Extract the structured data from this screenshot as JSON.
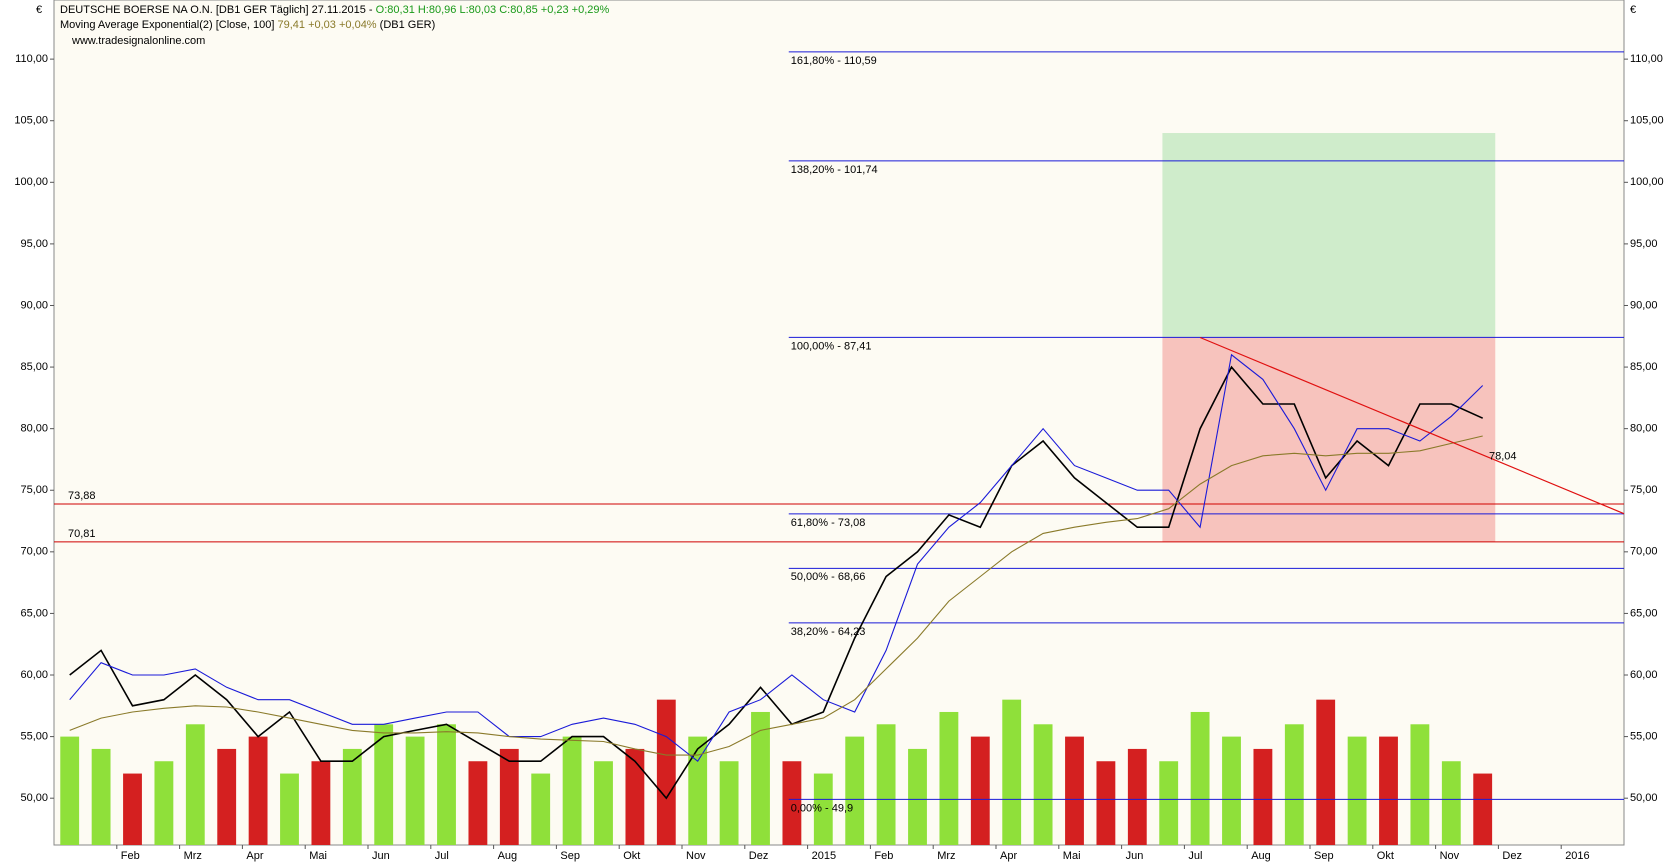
{
  "header": {
    "currency_left": "€",
    "currency_right": "€",
    "line1": "DEUTSCHE BOERSE NA O.N. [DB1 GER  Täglich] 27.11.2015 -",
    "ohlc": "O:80,31 H:80,96 L:80,03 C:80,85 +0,23 +0,29%",
    "line2": "Moving Average Exponential(2) [Close, 100]",
    "line2_values": "79,41 +0,03 +0,04%",
    "line2_suffix": "(DB1 GER)",
    "line3": "www.tradesignalonline.com"
  },
  "chart_data": {
    "type": "line",
    "categories": [
      null,
      null,
      "Feb",
      null,
      "Mrz",
      null,
      "Apr",
      null,
      "Mai",
      null,
      "Jun",
      null,
      "Jul",
      null,
      "Aug",
      null,
      "Sep",
      null,
      "Okt",
      null,
      "Nov",
      null,
      "Dez",
      null,
      "2015",
      null,
      "Feb",
      null,
      "Mrz",
      null,
      "Apr",
      null,
      "Mai",
      null,
      "Jun",
      null,
      "Jul",
      null,
      "Aug",
      null,
      "Sep",
      null,
      "Okt",
      null,
      "Nov",
      null,
      "Dez",
      null,
      "2016",
      null
    ],
    "ylim": [
      46.2,
      114.8
    ],
    "yticks": [
      {
        "value": 50,
        "label": "50,00"
      },
      {
        "value": 55,
        "label": "55,00"
      },
      {
        "value": 60,
        "label": "60,00"
      },
      {
        "value": 65,
        "label": "65,00"
      },
      {
        "value": 70,
        "label": "70,00"
      },
      {
        "value": 75,
        "label": "75,00"
      },
      {
        "value": 80,
        "label": "80,00"
      },
      {
        "value": 85,
        "label": "85,00"
      },
      {
        "value": 90,
        "label": "90,00"
      },
      {
        "value": 95,
        "label": "95,00"
      },
      {
        "value": 100,
        "label": "100,00"
      },
      {
        "value": 105,
        "label": "105,00"
      },
      {
        "value": 110,
        "label": "110,00"
      }
    ],
    "series": [
      {
        "name": "Close",
        "color": "#000000",
        "values": [
          60,
          62,
          57.5,
          58,
          60,
          58,
          55,
          57,
          53,
          53,
          55,
          55.5,
          56,
          54.5,
          53,
          53,
          55,
          55,
          53,
          50,
          54,
          56,
          59,
          56,
          57,
          63,
          68,
          70,
          73,
          72,
          77,
          79,
          76,
          74,
          72,
          72,
          80,
          85,
          82,
          82,
          76,
          79,
          77,
          82,
          82,
          80.85,
          null,
          null,
          null,
          null
        ]
      },
      {
        "name": "Band",
        "color": "#1a1ad8",
        "values": [
          58,
          61,
          60,
          60,
          60.5,
          59,
          58,
          58,
          57,
          56,
          56,
          56.5,
          57,
          57,
          55,
          55,
          56,
          56.5,
          56,
          55,
          53,
          57,
          58,
          60,
          58,
          57,
          62,
          69,
          72,
          74,
          77,
          80,
          77,
          76,
          75,
          75,
          72,
          86,
          84,
          80,
          75,
          80,
          80,
          79,
          81,
          83.5,
          null,
          null,
          null,
          null
        ]
      },
      {
        "name": "EMA",
        "color": "#8a7a2a",
        "values": [
          55.5,
          56.5,
          57,
          57.3,
          57.5,
          57.4,
          57,
          56.5,
          56,
          55.5,
          55.3,
          55.3,
          55.4,
          55.3,
          55,
          54.8,
          54.7,
          54.6,
          54,
          53.5,
          53.5,
          54.2,
          55.5,
          56,
          56.5,
          58,
          60.5,
          63,
          66,
          68,
          70,
          71.5,
          72,
          72.4,
          72.7,
          73.5,
          75.5,
          77,
          77.8,
          78,
          77.8,
          78,
          78,
          78.2,
          78.8,
          79.4,
          null,
          null,
          null,
          null
        ]
      }
    ],
    "volume": {
      "up_color": "#8fe03a",
      "down_color": "#d42020",
      "values": [
        55,
        54,
        52,
        53,
        56,
        54,
        55,
        52,
        53,
        54,
        56,
        55,
        56,
        53,
        54,
        52,
        55,
        53,
        54,
        58,
        55,
        53,
        57,
        53,
        52,
        55,
        56,
        54,
        57,
        55,
        58,
        56,
        55,
        53,
        54,
        53,
        57,
        55,
        54,
        56,
        58,
        55,
        55,
        56,
        53,
        52,
        null,
        null,
        null,
        null
      ]
    },
    "fib_levels": [
      {
        "value": 110.59,
        "label": "161,80% - 110,59"
      },
      {
        "value": 101.74,
        "label": "138,20% - 101,74"
      },
      {
        "value": 87.41,
        "label": "100,00% - 87,41"
      },
      {
        "value": 73.08,
        "label": "61,80% - 73,08"
      },
      {
        "value": 68.66,
        "label": "50,00% - 68,66"
      },
      {
        "value": 64.23,
        "label": "38,20% - 64,23"
      },
      {
        "value": 49.9,
        "label": "0,00% - 49,9"
      }
    ],
    "fib_color": "#1a1ad8",
    "red_levels": [
      {
        "value": 73.88,
        "label": "73,88"
      },
      {
        "value": 70.81,
        "label": "70,81"
      }
    ],
    "red_color": "#d00000",
    "zones": [
      {
        "from": 87.41,
        "to": 104,
        "color": "#cfeccb"
      },
      {
        "from": 70.81,
        "to": 87.41,
        "color": "#f7c3bd"
      }
    ],
    "trendline": {
      "start": 87.4,
      "end": 73.1,
      "color": "#e01010",
      "marker": {
        "value": 78.04,
        "label": "78,04"
      }
    }
  }
}
